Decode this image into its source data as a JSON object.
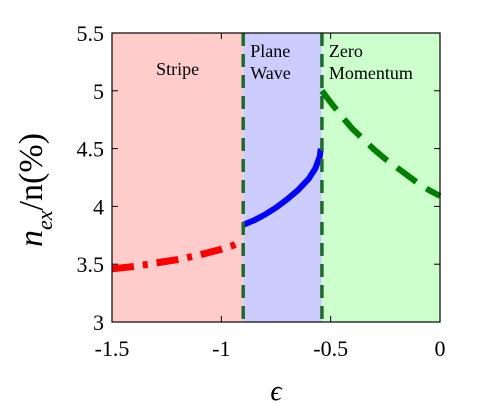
{
  "chart_data": {
    "type": "line",
    "xlabel": "ϵ",
    "ylabel": {
      "base": "n",
      "sub": "ex",
      "rest": "/n(%)"
    },
    "xlim": [
      -1.5,
      0
    ],
    "ylim": [
      3,
      5.5
    ],
    "xticks": [
      {
        "value": -1.5,
        "label": "-1.5"
      },
      {
        "value": -1.0,
        "label": "-1"
      },
      {
        "value": -0.5,
        "label": "-0.5"
      },
      {
        "value": 0,
        "label": "0"
      }
    ],
    "yticks": [
      {
        "value": 3,
        "label": "3"
      },
      {
        "value": 3.5,
        "label": "3.5"
      },
      {
        "value": 4,
        "label": "4"
      },
      {
        "value": 4.5,
        "label": "4.5"
      },
      {
        "value": 5,
        "label": "5"
      },
      {
        "value": 5.5,
        "label": "5.5"
      }
    ],
    "boundaries": [
      -0.9,
      -0.54
    ],
    "regions": [
      {
        "label_lines": [
          "Stripe"
        ],
        "x_range": [
          -1.5,
          -0.9
        ],
        "color": "#ffcccc"
      },
      {
        "label_lines": [
          "Plane",
          "Wave"
        ],
        "x_range": [
          -0.9,
          -0.54
        ],
        "color": "#ccccff"
      },
      {
        "label_lines": [
          "Zero",
          "Momentum"
        ],
        "x_range": [
          -0.54,
          0
        ],
        "color": "#ccffcc"
      }
    ],
    "series": [
      {
        "color": "#ff0000",
        "style": "dash-dot",
        "points": [
          [
            -1.5,
            3.46
          ],
          [
            -1.4,
            3.48
          ],
          [
            -1.3,
            3.51
          ],
          [
            -1.2,
            3.54
          ],
          [
            -1.1,
            3.58
          ],
          [
            -1.0,
            3.63
          ],
          [
            -0.95,
            3.66
          ],
          [
            -0.9,
            3.7
          ]
        ]
      },
      {
        "color": "#0000ff",
        "style": "solid",
        "points": [
          [
            -0.9,
            3.84
          ],
          [
            -0.85,
            3.88
          ],
          [
            -0.8,
            3.93
          ],
          [
            -0.75,
            3.99
          ],
          [
            -0.7,
            4.06
          ],
          [
            -0.65,
            4.14
          ],
          [
            -0.6,
            4.24
          ],
          [
            -0.57,
            4.33
          ],
          [
            -0.55,
            4.43
          ],
          [
            -0.545,
            4.5
          ]
        ]
      },
      {
        "color": "#008000",
        "style": "dashed",
        "points": [
          [
            -0.54,
            5.0
          ],
          [
            -0.5,
            4.9
          ],
          [
            -0.45,
            4.78
          ],
          [
            -0.4,
            4.67
          ],
          [
            -0.35,
            4.58
          ],
          [
            -0.3,
            4.49
          ],
          [
            -0.25,
            4.41
          ],
          [
            -0.2,
            4.34
          ],
          [
            -0.15,
            4.27
          ],
          [
            -0.1,
            4.2
          ],
          [
            -0.05,
            4.14
          ],
          [
            0,
            4.09
          ]
        ]
      }
    ]
  }
}
